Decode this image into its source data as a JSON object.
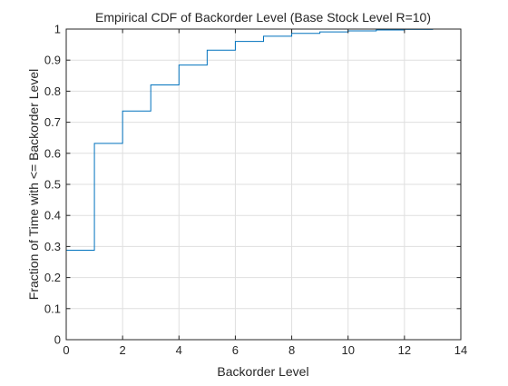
{
  "chart_data": {
    "type": "line",
    "step": true,
    "title": "Empirical CDF of Backorder Level  (Base Stock Level R=10)",
    "xlabel": "Backorder Level",
    "ylabel": "Fraction of Time with <= Backorder Level",
    "xlim": [
      0,
      14
    ],
    "ylim": [
      0,
      1
    ],
    "xticks": [
      0,
      2,
      4,
      6,
      8,
      10,
      12,
      14
    ],
    "xtick_labels": [
      "0",
      "2",
      "4",
      "6",
      "8",
      "10",
      "12",
      "14"
    ],
    "yticks": [
      0,
      0.1,
      0.2,
      0.3,
      0.4,
      0.5,
      0.6,
      0.7,
      0.8,
      0.9,
      1
    ],
    "ytick_labels": [
      "0",
      "0.1",
      "0.2",
      "0.3",
      "0.4",
      "0.5",
      "0.6",
      "0.7",
      "0.8",
      "0.9",
      "1"
    ],
    "grid": true,
    "line_color": "#0072BD",
    "x": [
      0,
      1,
      2,
      3,
      4,
      5,
      6,
      7,
      8,
      9,
      10,
      11,
      12,
      13,
      14
    ],
    "values": [
      0.288,
      0.632,
      0.736,
      0.82,
      0.884,
      0.932,
      0.96,
      0.977,
      0.986,
      0.991,
      0.994,
      0.997,
      0.999,
      1.0,
      1.0
    ]
  }
}
